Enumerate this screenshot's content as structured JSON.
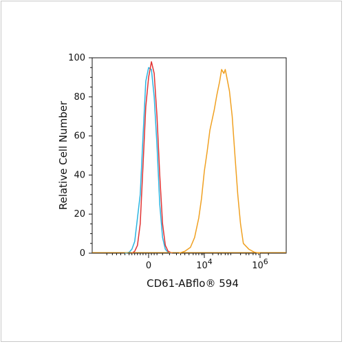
{
  "chart_data": {
    "type": "line",
    "title": "",
    "xlabel": "CD61-ABflo® 594",
    "ylabel": "Relative Cell Number",
    "x_scale": "biexponential",
    "x_tick_labels": [
      {
        "base": "0",
        "exp": ""
      },
      {
        "base": "10",
        "exp": "4"
      },
      {
        "base": "10",
        "exp": "6"
      }
    ],
    "y_tick_labels": [
      "0",
      "20",
      "40",
      "60",
      "80",
      "100"
    ],
    "ylim": [
      0,
      100
    ],
    "grid": false,
    "series": [
      {
        "color": "#2ab3e0",
        "x": [
          -1.7,
          -1.4,
          -1.2,
          -1.0,
          -0.6,
          -0.4,
          -0.2,
          0,
          0.2,
          0.4,
          0.6,
          0.8,
          1.0,
          1.2,
          1.4,
          1.7
        ],
        "values": [
          0,
          0.5,
          2,
          6,
          30,
          60,
          88,
          95,
          94,
          80,
          55,
          25,
          8,
          2,
          0.5,
          0
        ]
      },
      {
        "color": "#e03232",
        "x": [
          -1.2,
          -1.0,
          -0.8,
          -0.6,
          -0.4,
          -0.2,
          0,
          0.2,
          0.4,
          0.6,
          0.8,
          1.0,
          1.2,
          1.4,
          1.7
        ],
        "values": [
          0,
          1,
          4,
          15,
          45,
          75,
          90,
          98,
          92,
          70,
          40,
          15,
          4,
          1,
          0
        ]
      },
      {
        "color": "#f0a020",
        "x": [
          2.2,
          2.6,
          3.0,
          3.3,
          3.6,
          3.8,
          4.0,
          4.1,
          4.2,
          4.35,
          4.45,
          4.55,
          4.62,
          4.7,
          4.75,
          4.82,
          4.9,
          5.0,
          5.1,
          5.2,
          5.3,
          5.4,
          5.6,
          5.8,
          6.0
        ],
        "values": [
          0,
          1,
          3,
          8,
          18,
          28,
          42,
          52,
          63,
          73,
          81,
          88,
          94,
          92,
          94,
          89,
          83,
          70,
          50,
          30,
          15,
          5,
          2,
          0.5,
          0
        ]
      }
    ]
  }
}
